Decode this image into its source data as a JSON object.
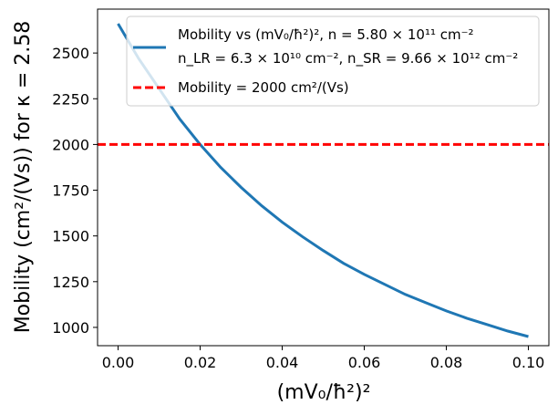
{
  "chart_data": {
    "type": "line",
    "title": "",
    "xlabel": "(mV₀/ħ²)²",
    "ylabel": "Mobility (cm²/(Vs)) for  κ = 2.58",
    "xlim": [
      -0.005,
      0.105
    ],
    "ylim": [
      900,
      2740
    ],
    "xticks": [
      0.0,
      0.02,
      0.04,
      0.06,
      0.08,
      0.1
    ],
    "xtick_labels": [
      "0.00",
      "0.02",
      "0.04",
      "0.06",
      "0.08",
      "0.10"
    ],
    "yticks": [
      1000,
      1250,
      1500,
      1750,
      2000,
      2250,
      2500
    ],
    "ytick_labels": [
      "1000",
      "1250",
      "1500",
      "1750",
      "2000",
      "2250",
      "2500"
    ],
    "grid": false,
    "legend_position": "top-right",
    "series": [
      {
        "name": "Mobility vs (mV₀/ħ²)², n = 5.80 × 10¹¹ cm⁻², n_LR = 6.3 × 10¹⁰ cm⁻², n_SR = 9.66 × 10¹² cm⁻²",
        "color": "#1f77b4",
        "style": "solid",
        "x": [
          0.0,
          0.005,
          0.01,
          0.015,
          0.02,
          0.025,
          0.03,
          0.035,
          0.04,
          0.045,
          0.05,
          0.055,
          0.06,
          0.065,
          0.07,
          0.075,
          0.08,
          0.085,
          0.09,
          0.095,
          0.1
        ],
        "y": [
          2660,
          2470,
          2305,
          2140,
          2000,
          1875,
          1765,
          1665,
          1575,
          1495,
          1420,
          1350,
          1290,
          1235,
          1180,
          1135,
          1090,
          1050,
          1015,
          980,
          950
        ]
      },
      {
        "name": "Mobility = 2000 cm²/(Vs)",
        "color": "#ff0000",
        "style": "dashed",
        "x": [
          -0.005,
          0.105
        ],
        "y": [
          2000,
          2000
        ]
      }
    ],
    "legend": {
      "line1": "Mobility vs (mV₀/ħ²)², n = 5.80 × 10¹¹ cm⁻²",
      "line2": "n_LR = 6.3 × 10¹⁰ cm⁻²,  n_SR = 9.66 × 10¹² cm⁻²",
      "line3": "Mobility = 2000 cm²/(Vs)"
    }
  }
}
